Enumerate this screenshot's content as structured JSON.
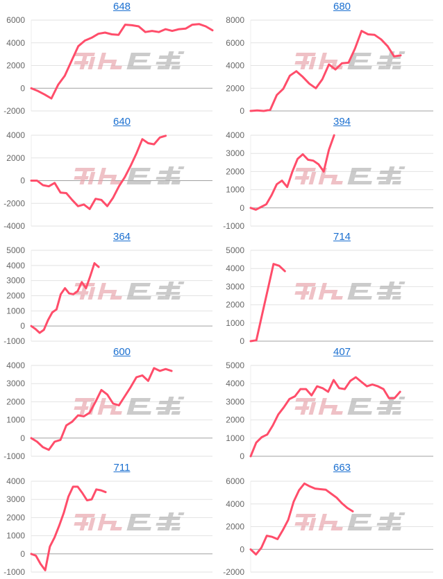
{
  "watermark": {
    "text": "みんレポ",
    "pink": "#e8a0a8",
    "gray": "#b0b0b0"
  },
  "colors": {
    "line": "#ff4d6a",
    "title_link": "#1a6fd0",
    "grid": "#e2e2e2",
    "zero_line": "#a0a0a0"
  },
  "chart_data": [
    {
      "type": "line",
      "title": "648",
      "ylim": [
        -2000,
        6000
      ],
      "yticks": [
        "-2000",
        "0",
        "2000",
        "4000",
        "6000"
      ],
      "xlim": [
        0,
        27
      ],
      "grid": true,
      "values": [
        0,
        -250,
        -550,
        -900,
        300,
        1100,
        2400,
        3700,
        4200,
        4450,
        4800,
        4900,
        4750,
        4700,
        5600,
        5550,
        5450,
        4950,
        5050,
        4950,
        5200,
        5050,
        5200,
        5250,
        5600,
        5650,
        5450,
        5100
      ]
    },
    {
      "type": "line",
      "title": "680",
      "ylim": [
        0,
        8000
      ],
      "yticks": [
        "0",
        "2000",
        "4000",
        "6000",
        "8000"
      ],
      "xlim": [
        0,
        28
      ],
      "grid": true,
      "values": [
        0,
        50,
        0,
        100,
        1400,
        1950,
        3100,
        3500,
        3000,
        2400,
        2000,
        2800,
        4100,
        3650,
        4200,
        4250,
        5500,
        7050,
        6750,
        6700,
        6300,
        5700,
        4800,
        4900
      ]
    },
    {
      "type": "line",
      "title": "640",
      "ylim": [
        -4000,
        4000
      ],
      "yticks": [
        "-4000",
        "-2000",
        "0",
        "2000",
        "4000"
      ],
      "xlim": [
        0,
        31
      ],
      "grid": true,
      "values": [
        0,
        0,
        -400,
        -500,
        -200,
        -1050,
        -1100,
        -1700,
        -2250,
        -2100,
        -2500,
        -1600,
        -1700,
        -2250,
        -1500,
        -500,
        300,
        1300,
        2400,
        3650,
        3300,
        3200,
        3800,
        3950
      ]
    },
    {
      "type": "line",
      "title": "394",
      "ylim": [
        -1000,
        4000
      ],
      "yticks": [
        "-1000",
        "0",
        "1000",
        "2000",
        "3000",
        "4000"
      ],
      "xlim": [
        0,
        35
      ],
      "grid": true,
      "values": [
        0,
        -100,
        50,
        200,
        700,
        1300,
        1500,
        1150,
        2000,
        2700,
        2950,
        2650,
        2600,
        2400,
        2000,
        3200,
        4000
      ]
    },
    {
      "type": "line",
      "title": "364",
      "ylim": [
        -1000,
        5000
      ],
      "yticks": [
        "-1000",
        "0",
        "1000",
        "2000",
        "3000",
        "4000",
        "5000"
      ],
      "xlim": [
        0,
        43
      ],
      "grid": true,
      "values": [
        0,
        -200,
        -450,
        -250,
        400,
        900,
        1100,
        2100,
        2500,
        2150,
        2100,
        2300,
        2900,
        2500,
        3300,
        4150,
        3900
      ]
    },
    {
      "type": "line",
      "title": "714",
      "ylim": [
        0,
        5000
      ],
      "yticks": [
        "0",
        "1000",
        "2000",
        "3000",
        "4000",
        "5000"
      ],
      "xlim": [
        0,
        32
      ],
      "grid": true,
      "values": [
        0,
        50,
        1450,
        2850,
        4250,
        4150,
        3850
      ]
    },
    {
      "type": "line",
      "title": "600",
      "ylim": [
        -1000,
        4000
      ],
      "yticks": [
        "-1000",
        "0",
        "1000",
        "2000",
        "3000",
        "4000"
      ],
      "xlim": [
        0,
        31
      ],
      "grid": true,
      "values": [
        0,
        -200,
        -500,
        -650,
        -200,
        -100,
        700,
        900,
        1250,
        1200,
        1400,
        2000,
        2650,
        2400,
        1900,
        1800,
        2300,
        2800,
        3350,
        3450,
        3150,
        3850,
        3700,
        3800,
        3700
      ]
    },
    {
      "type": "line",
      "title": "407",
      "ylim": [
        0,
        5000
      ],
      "yticks": [
        "0",
        "1000",
        "2000",
        "3000",
        "4000",
        "5000"
      ],
      "xlim": [
        0,
        33
      ],
      "grid": true,
      "values": [
        0,
        750,
        1050,
        1200,
        1700,
        2300,
        2700,
        3150,
        3300,
        3700,
        3700,
        3350,
        3850,
        3750,
        3550,
        4200,
        3750,
        3700,
        4150,
        4350,
        4100,
        3850,
        3950,
        3850,
        3700,
        3200,
        3200,
        3550
      ]
    },
    {
      "type": "line",
      "title": "711",
      "ylim": [
        -1000,
        4000
      ],
      "yticks": [
        "-1000",
        "0",
        "1000",
        "2000",
        "3000",
        "4000"
      ],
      "xlim": [
        0,
        39
      ],
      "grid": true,
      "values": [
        0,
        -100,
        -550,
        -900,
        400,
        900,
        1550,
        2250,
        3150,
        3700,
        3700,
        3350,
        2950,
        3000,
        3550,
        3500,
        3400
      ]
    },
    {
      "type": "line",
      "title": "663",
      "ylim": [
        -2000,
        6000
      ],
      "yticks": [
        "-2000",
        "0",
        "2000",
        "4000",
        "6000"
      ],
      "xlim": [
        0,
        34
      ],
      "grid": true,
      "values": [
        0,
        -450,
        150,
        1200,
        1100,
        900,
        1700,
        2600,
        4200,
        5200,
        5800,
        5550,
        5350,
        5300,
        5250,
        4900,
        4550,
        4050,
        3650,
        3350
      ]
    }
  ]
}
